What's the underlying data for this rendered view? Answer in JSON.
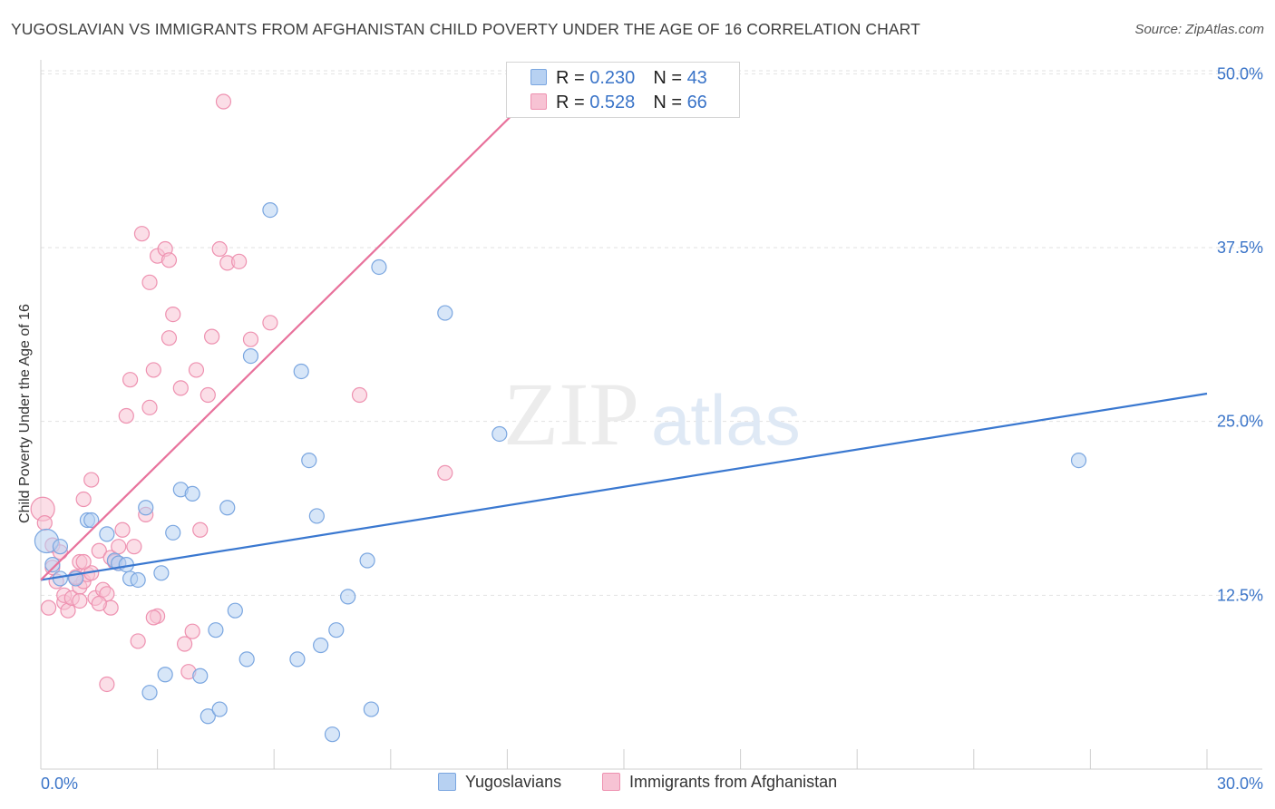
{
  "title": "YUGOSLAVIAN VS IMMIGRANTS FROM AFGHANISTAN CHILD POVERTY UNDER THE AGE OF 16 CORRELATION CHART",
  "source": "Source: ZipAtlas.com",
  "watermark": {
    "zip": "ZIP",
    "atlas": "atlas"
  },
  "legend": {
    "rows": [
      {
        "r_label": "R = ",
        "r_value": "0.230",
        "n_label": "N = ",
        "n_value": "43"
      },
      {
        "r_label": "R = ",
        "r_value": "0.528",
        "n_label": "N = ",
        "n_value": "66"
      }
    ]
  },
  "bottom_legend": [
    "Yugoslavians",
    "Immigrants from Afghanistan"
  ],
  "colors": {
    "blue_fill": "#b7d1f2",
    "blue_stroke": "#7aa6e0",
    "blue_line": "#3a78d0",
    "pink_fill": "#f7c3d4",
    "pink_stroke": "#ee91b0",
    "pink_line": "#e8729c",
    "tick_label": "#3a74c8"
  },
  "chart_data": {
    "type": "scatter",
    "title": "YUGOSLAVIAN VS IMMIGRANTS FROM AFGHANISTAN CHILD POVERTY UNDER THE AGE OF 16 CORRELATION CHART",
    "xlabel": "",
    "ylabel": "Child Poverty Under the Age of 16",
    "xlim": [
      0,
      30
    ],
    "ylim": [
      0,
      51
    ],
    "x_tick_labels": [
      "0.0%",
      "30.0%"
    ],
    "y_ticks": [
      12.5,
      25.0,
      37.5,
      50.0
    ],
    "y_tick_labels": [
      "12.5%",
      "25.0%",
      "37.5%",
      "50.0%"
    ],
    "grid": true,
    "series": [
      {
        "name": "Yugoslavians",
        "color": "#7aa6e0",
        "trend": {
          "x": [
            0,
            30
          ],
          "y": [
            13.6,
            27.0
          ]
        },
        "points": [
          [
            0.15,
            16.4
          ],
          [
            0.3,
            14.7
          ],
          [
            0.5,
            16.0
          ],
          [
            0.5,
            13.7
          ],
          [
            0.9,
            13.7
          ],
          [
            1.2,
            17.9
          ],
          [
            1.3,
            17.9
          ],
          [
            1.7,
            16.9
          ],
          [
            1.9,
            15.0
          ],
          [
            2.0,
            14.8
          ],
          [
            2.2,
            14.7
          ],
          [
            2.3,
            13.7
          ],
          [
            2.5,
            13.6
          ],
          [
            2.7,
            18.8
          ],
          [
            2.8,
            5.5
          ],
          [
            3.1,
            14.1
          ],
          [
            3.2,
            6.8
          ],
          [
            3.4,
            17.0
          ],
          [
            3.6,
            20.1
          ],
          [
            3.9,
            19.8
          ],
          [
            4.1,
            6.7
          ],
          [
            4.3,
            3.8
          ],
          [
            4.5,
            10.0
          ],
          [
            4.6,
            4.3
          ],
          [
            4.8,
            18.8
          ],
          [
            5.0,
            11.4
          ],
          [
            5.3,
            7.9
          ],
          [
            5.4,
            29.7
          ],
          [
            5.9,
            40.2
          ],
          [
            6.6,
            7.9
          ],
          [
            6.7,
            28.6
          ],
          [
            6.9,
            22.2
          ],
          [
            7.1,
            18.2
          ],
          [
            7.2,
            8.9
          ],
          [
            7.5,
            2.5
          ],
          [
            7.6,
            10.0
          ],
          [
            7.9,
            12.4
          ],
          [
            8.4,
            15.0
          ],
          [
            8.5,
            4.3
          ],
          [
            8.7,
            36.1
          ],
          [
            10.4,
            32.8
          ],
          [
            11.8,
            24.1
          ],
          [
            26.7,
            22.2
          ]
        ]
      },
      {
        "name": "Immigrants from Afghanistan",
        "color": "#ee91b0",
        "trend": {
          "x": [
            0,
            13.2
          ],
          "y": [
            13.6,
            50.0
          ]
        },
        "points": [
          [
            0.05,
            18.7
          ],
          [
            0.1,
            17.7
          ],
          [
            0.2,
            11.6
          ],
          [
            0.3,
            16.1
          ],
          [
            0.4,
            13.5
          ],
          [
            0.5,
            15.6
          ],
          [
            0.6,
            12.0
          ],
          [
            0.6,
            12.5
          ],
          [
            0.7,
            11.4
          ],
          [
            0.8,
            12.3
          ],
          [
            0.9,
            13.8
          ],
          [
            1.0,
            14.9
          ],
          [
            1.0,
            13.1
          ],
          [
            1.0,
            12.1
          ],
          [
            1.1,
            19.4
          ],
          [
            1.1,
            13.5
          ],
          [
            1.2,
            14.0
          ],
          [
            1.3,
            20.8
          ],
          [
            1.3,
            14.1
          ],
          [
            1.4,
            12.3
          ],
          [
            1.5,
            15.7
          ],
          [
            1.6,
            12.9
          ],
          [
            1.7,
            12.6
          ],
          [
            1.8,
            15.2
          ],
          [
            1.8,
            11.6
          ],
          [
            1.9,
            14.9
          ],
          [
            2.0,
            16.0
          ],
          [
            2.1,
            17.2
          ],
          [
            2.2,
            25.4
          ],
          [
            2.3,
            28.0
          ],
          [
            2.4,
            16.0
          ],
          [
            2.5,
            9.2
          ],
          [
            2.6,
            38.5
          ],
          [
            2.7,
            18.3
          ],
          [
            2.8,
            26.0
          ],
          [
            2.8,
            35.0
          ],
          [
            2.9,
            28.7
          ],
          [
            3.0,
            11.0
          ],
          [
            3.0,
            36.9
          ],
          [
            3.2,
            37.4
          ],
          [
            3.3,
            36.6
          ],
          [
            3.3,
            31.0
          ],
          [
            3.4,
            32.7
          ],
          [
            3.6,
            27.4
          ],
          [
            3.7,
            9.0
          ],
          [
            3.8,
            7.0
          ],
          [
            3.9,
            9.9
          ],
          [
            4.0,
            28.7
          ],
          [
            4.1,
            17.2
          ],
          [
            4.3,
            26.9
          ],
          [
            4.4,
            31.1
          ],
          [
            4.6,
            37.4
          ],
          [
            4.7,
            48.0
          ],
          [
            4.8,
            36.4
          ],
          [
            5.1,
            36.5
          ],
          [
            5.4,
            30.9
          ],
          [
            5.9,
            32.1
          ],
          [
            8.2,
            26.9
          ],
          [
            10.4,
            21.3
          ],
          [
            1.7,
            6.1
          ],
          [
            2.9,
            10.9
          ],
          [
            0.9,
            13.8
          ],
          [
            1.1,
            14.9
          ],
          [
            2.0,
            14.8
          ],
          [
            0.3,
            14.5
          ],
          [
            1.5,
            11.9
          ]
        ]
      }
    ]
  }
}
